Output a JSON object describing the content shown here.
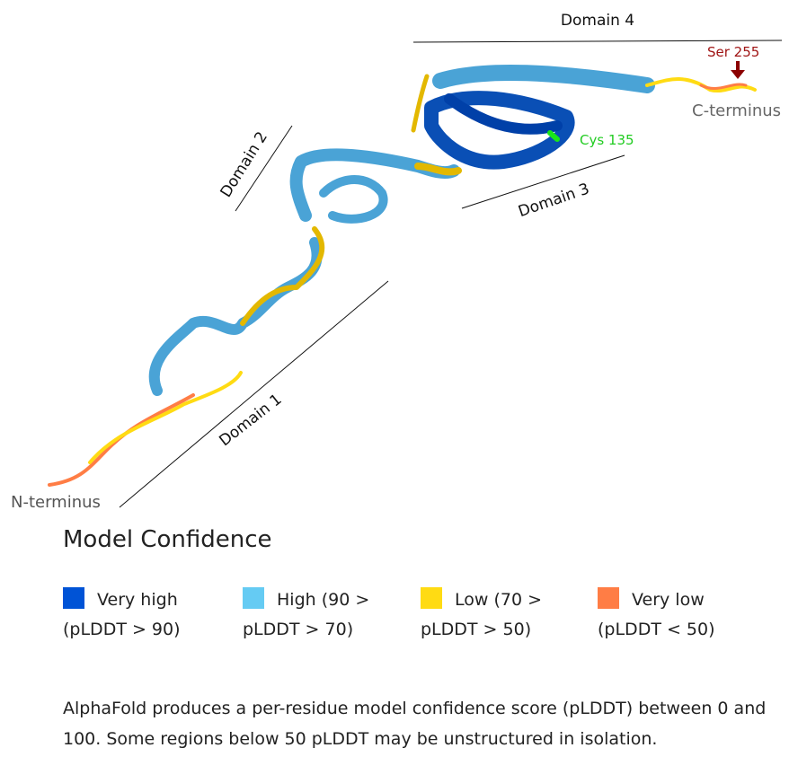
{
  "figure": {
    "domain_labels": [
      "Domain 1",
      "Domain 2",
      "Domain 3",
      "Domain 4"
    ],
    "annotations": {
      "n_terminus": "N-terminus",
      "c_terminus": "C-terminus",
      "ser": "Ser 255",
      "cys": "Cys 135"
    }
  },
  "legend": {
    "title": "Model Confidence",
    "items": [
      {
        "label": "Very high (pLDDT > 90)",
        "color": "#0053d6"
      },
      {
        "label": "High (90 > pLDDT > 70)",
        "color": "#65cbf3"
      },
      {
        "label": "Low (70 > pLDDT > 50)",
        "color": "#ffdb13"
      },
      {
        "label": "Very low (pLDDT < 50)",
        "color": "#ff7d45"
      }
    ],
    "description": "AlphaFold produces a per-residue model confidence score (pLDDT) between 0 and 100. Some regions below 50 pLDDT may be unstructured in isolation."
  }
}
